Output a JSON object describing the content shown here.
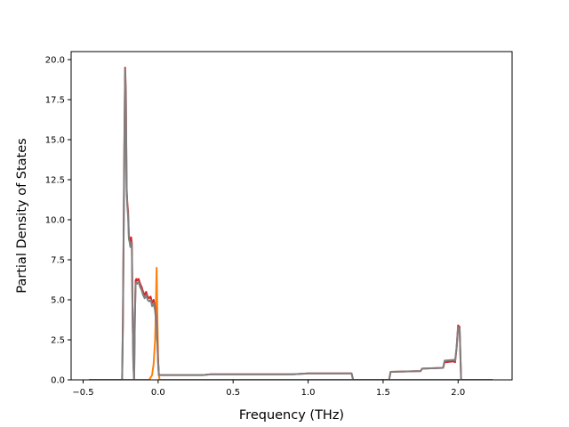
{
  "chart_data": {
    "type": "line",
    "title": "",
    "xlabel": "Frequency (THz)",
    "ylabel": "Partial Density of States",
    "xlim": [
      -0.58,
      2.36
    ],
    "ylim": [
      0,
      20.5
    ],
    "xticks": [
      -0.5,
      0.0,
      0.5,
      1.0,
      1.5,
      2.0
    ],
    "xtick_labels": [
      "−0.5",
      "0.0",
      "0.5",
      "1.0",
      "1.5",
      "2.0"
    ],
    "yticks": [
      0.0,
      2.5,
      5.0,
      7.5,
      10.0,
      12.5,
      15.0,
      17.5,
      20.0
    ],
    "ytick_labels": [
      "0.0",
      "2.5",
      "5.0",
      "7.5",
      "10.0",
      "12.5",
      "15.0",
      "17.5",
      "20.0"
    ],
    "grid": false,
    "legend": "none",
    "series": [
      {
        "color": "#ff7f0e",
        "x": [
          -0.46,
          -0.06,
          -0.04,
          -0.03,
          -0.02,
          -0.015,
          -0.01,
          -0.005,
          0.0,
          0.005,
          0.01,
          2.23
        ],
        "y": [
          0,
          0,
          0.3,
          1.0,
          2.5,
          4.5,
          7.0,
          4.0,
          1.2,
          0.3,
          0,
          0
        ]
      },
      {
        "color": "#d62728",
        "x": [
          -0.46,
          -0.24,
          -0.235,
          -0.225,
          -0.22,
          -0.215,
          -0.21,
          -0.205,
          -0.2,
          -0.195,
          -0.19,
          -0.185,
          -0.18,
          -0.175,
          -0.17,
          -0.165,
          -0.16,
          -0.155,
          -0.15,
          -0.145,
          -0.14,
          -0.13,
          -0.12,
          -0.11,
          -0.1,
          -0.09,
          -0.08,
          -0.07,
          -0.06,
          -0.05,
          -0.04,
          -0.03,
          -0.02,
          -0.01,
          0.0,
          0.005,
          0.3,
          0.35,
          0.9,
          1.0,
          1.29,
          1.3,
          1.54,
          1.55,
          1.75,
          1.76,
          1.9,
          1.91,
          1.97,
          1.98,
          1.99,
          2.0,
          2.01,
          2.02,
          2.23
        ],
        "y": [
          0,
          0,
          3.5,
          15.0,
          19.5,
          18.0,
          12.0,
          11.0,
          10.5,
          9.0,
          8.8,
          8.5,
          8.9,
          8.5,
          4.0,
          1.0,
          0,
          4.0,
          6.2,
          6.3,
          6.2,
          6.3,
          6.0,
          5.8,
          5.5,
          5.3,
          5.5,
          5.2,
          5.1,
          5.2,
          4.8,
          5.0,
          4.5,
          3.5,
          1.2,
          0.3,
          0.3,
          0.35,
          0.35,
          0.4,
          0.4,
          0,
          0,
          0.5,
          0.55,
          0.7,
          0.75,
          1.1,
          1.15,
          1.1,
          2.0,
          3.4,
          3.3,
          0,
          0
        ]
      },
      {
        "color": "#7f7f7f",
        "x": [
          -0.46,
          -0.24,
          -0.235,
          -0.225,
          -0.22,
          -0.215,
          -0.21,
          -0.205,
          -0.2,
          -0.195,
          -0.19,
          -0.185,
          -0.18,
          -0.175,
          -0.17,
          -0.165,
          -0.16,
          -0.155,
          -0.15,
          -0.145,
          -0.14,
          -0.13,
          -0.12,
          -0.11,
          -0.1,
          -0.09,
          -0.08,
          -0.07,
          -0.06,
          -0.05,
          -0.04,
          -0.03,
          -0.02,
          -0.01,
          0.0,
          0.005,
          0.3,
          0.35,
          0.9,
          1.0,
          1.29,
          1.3,
          1.54,
          1.55,
          1.75,
          1.76,
          1.9,
          1.91,
          1.97,
          1.98,
          1.99,
          2.0,
          2.01,
          2.02,
          2.23
        ],
        "y": [
          0,
          0,
          3.2,
          14.5,
          19.4,
          17.5,
          11.8,
          10.8,
          10.2,
          8.8,
          8.6,
          8.3,
          8.6,
          8.2,
          3.8,
          0.9,
          0,
          3.8,
          6.0,
          6.1,
          6.0,
          6.1,
          5.8,
          5.6,
          5.3,
          5.1,
          5.3,
          5.0,
          4.9,
          5.0,
          4.6,
          4.8,
          4.3,
          3.3,
          1.0,
          0.3,
          0.3,
          0.35,
          0.35,
          0.4,
          0.4,
          0,
          0,
          0.5,
          0.55,
          0.7,
          0.75,
          1.2,
          1.25,
          1.2,
          2.0,
          3.3,
          3.2,
          0,
          0
        ]
      }
    ]
  }
}
